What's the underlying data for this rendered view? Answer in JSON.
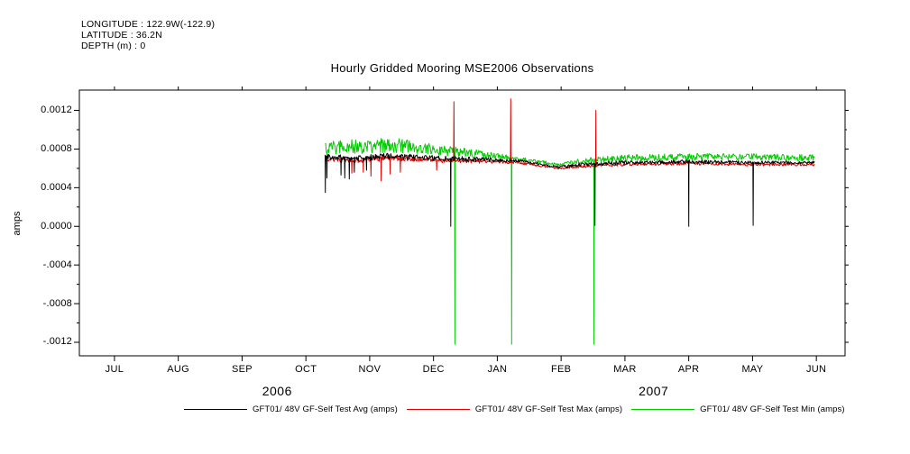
{
  "header": {
    "longitude": "LONGITUDE : 122.9W(-122.9)",
    "latitude": "LATITUDE : 36.2N",
    "depth": "DEPTH (m) : 0"
  },
  "chart_data": {
    "type": "line",
    "title": "Hourly Gridded Mooring MSE2006 Observations",
    "xlabel": "",
    "ylabel": "amps",
    "x_axis": {
      "tick_labels": [
        "JUL",
        "AUG",
        "SEP",
        "OCT",
        "NOV",
        "DEC",
        "JAN",
        "FEB",
        "MAR",
        "APR",
        "MAY",
        "JUN"
      ],
      "year_labels": [
        {
          "label": "2006",
          "anchor_month": 2.55
        },
        {
          "label": "2007",
          "anchor_month": 8.45
        }
      ],
      "domain_months": [
        -0.55,
        11.45
      ]
    },
    "y_axis": {
      "tick_values": [
        0.0012,
        0.0008,
        0.0004,
        0.0,
        -0.0004,
        -0.0008,
        -0.0012
      ],
      "tick_labels": [
        "0.0012",
        "0.0008",
        "0.0004",
        "0.0000",
        "-.0004",
        "-.0008",
        "-.0012"
      ],
      "minor_tick_values": [
        0.001,
        0.0006,
        0.0002,
        -0.0002,
        -0.0006,
        -0.001
      ],
      "range": [
        -0.00134,
        0.00141
      ]
    },
    "x_start": 3.3,
    "x_end": 10.97,
    "step": 0.01,
    "noise_seed": 20061009,
    "series": [
      {
        "name": "GFT01/ 48V GF-Self Test Avg (amps)",
        "color": "#000000",
        "noise_bias": 0.5,
        "base": [
          [
            3.3,
            0.00072
          ],
          [
            3.8,
            0.0007
          ],
          [
            4.3,
            0.00073
          ],
          [
            4.8,
            0.00071
          ],
          [
            5.3,
            0.0007
          ],
          [
            5.8,
            0.00069
          ],
          [
            6.33,
            0.00068
          ],
          [
            6.97,
            0.00061
          ],
          [
            7.3,
            0.00064
          ],
          [
            8.0,
            0.00066
          ],
          [
            9.0,
            0.00067
          ],
          [
            10.0,
            0.00066
          ],
          [
            10.97,
            0.00066
          ]
        ],
        "noise_amp": [
          [
            3.3,
            6e-05
          ],
          [
            4.5,
            6e-05
          ],
          [
            5.5,
            5e-05
          ],
          [
            6.2,
            4e-05
          ],
          [
            6.4,
            2e-05
          ],
          [
            6.9,
            2e-05
          ],
          [
            7.2,
            4e-05
          ],
          [
            8.0,
            4e-05
          ],
          [
            10.97,
            3e-05
          ]
        ],
        "spikes": [
          [
            3.305,
            0.00035
          ],
          [
            3.33,
            0.0005
          ],
          [
            3.55,
            0.00053
          ],
          [
            3.61,
            0.0005
          ],
          [
            3.68,
            0.00049
          ],
          [
            3.76,
            0.00056
          ],
          [
            3.95,
            0.00058
          ],
          [
            5.27,
            0.0
          ],
          [
            7.53,
            1e-05
          ],
          [
            9.0,
            0.0
          ],
          [
            10.01,
            1e-05
          ]
        ]
      },
      {
        "name": "GFT01/ 48V GF-Self Test Max (amps)",
        "color": "#dd0000",
        "noise_bias": 0.5,
        "base": [
          [
            3.3,
            0.0007
          ],
          [
            3.8,
            0.00068
          ],
          [
            4.3,
            0.00071
          ],
          [
            4.8,
            0.00069
          ],
          [
            5.3,
            0.00068
          ],
          [
            5.8,
            0.00067
          ],
          [
            6.33,
            0.00066
          ],
          [
            6.97,
            0.0006
          ],
          [
            7.3,
            0.00062
          ],
          [
            8.0,
            0.00064
          ],
          [
            9.0,
            0.00065
          ],
          [
            10.0,
            0.00064
          ],
          [
            10.97,
            0.00064
          ]
        ],
        "noise_amp": [
          [
            3.3,
            6e-05
          ],
          [
            5.0,
            5e-05
          ],
          [
            6.3,
            3e-05
          ],
          [
            6.9,
            2e-05
          ],
          [
            7.3,
            3e-05
          ],
          [
            10.97,
            3e-05
          ]
        ],
        "spikes": [
          [
            3.72,
            0.00055
          ],
          [
            3.9,
            0.00056
          ],
          [
            4.02,
            0.00052
          ],
          [
            4.18,
            0.00047
          ],
          [
            4.32,
            0.00054
          ],
          [
            4.48,
            0.00056
          ],
          [
            5.05,
            0.00058
          ],
          [
            5.32,
            0.00129
          ],
          [
            6.21,
            0.00132
          ],
          [
            7.545,
            0.0012
          ]
        ]
      },
      {
        "name": "GFT01/ 48V GF-Self Test Min (amps)",
        "color": "#00cc00",
        "noise_bias": 0.25,
        "base": [
          [
            3.3,
            0.00077
          ],
          [
            3.8,
            0.00079
          ],
          [
            4.3,
            0.0008
          ],
          [
            4.8,
            0.00078
          ],
          [
            5.3,
            0.00075
          ],
          [
            5.8,
            0.00072
          ],
          [
            6.33,
            0.00069
          ],
          [
            6.97,
            0.00063
          ],
          [
            7.3,
            0.00066
          ],
          [
            8.0,
            0.00069
          ],
          [
            9.0,
            0.0007
          ],
          [
            10.0,
            0.0007
          ],
          [
            10.97,
            0.00069
          ]
        ],
        "noise_amp": [
          [
            3.3,
            0.00014
          ],
          [
            4.3,
            0.00016
          ],
          [
            5.0,
            0.00012
          ],
          [
            5.8,
            8e-05
          ],
          [
            6.33,
            4e-05
          ],
          [
            6.97,
            3e-05
          ],
          [
            7.3,
            6e-05
          ],
          [
            8.0,
            7e-05
          ],
          [
            10.97,
            7e-05
          ]
        ],
        "spikes": [
          [
            5.335,
            -0.00122
          ],
          [
            6.225,
            -0.00122
          ],
          [
            7.515,
            -0.00122
          ]
        ]
      }
    ]
  }
}
